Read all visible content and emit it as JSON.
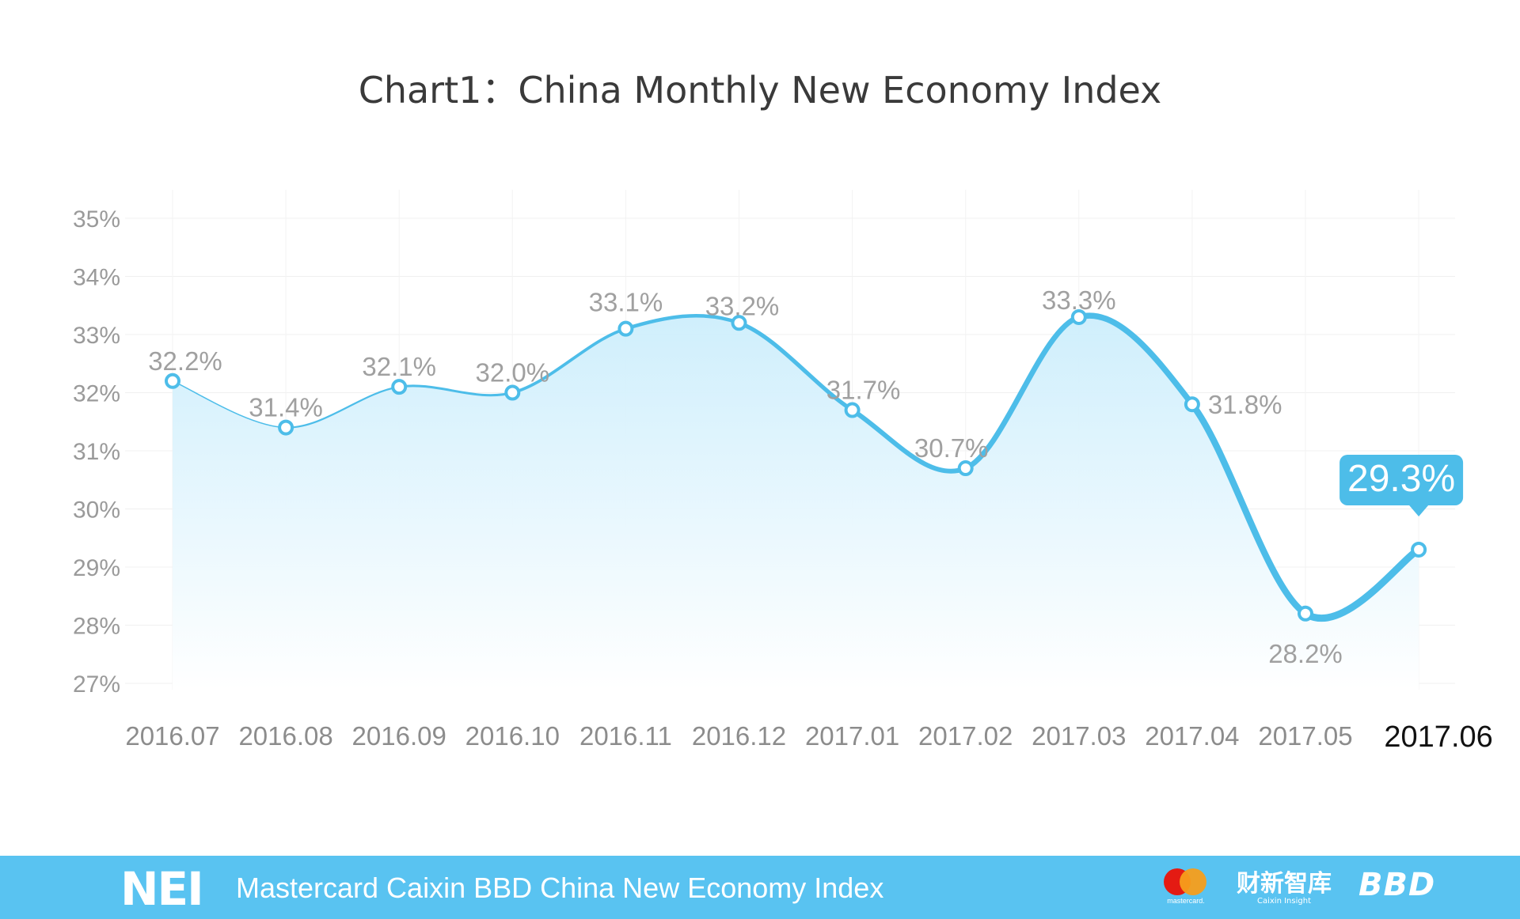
{
  "chart_data": {
    "type": "area",
    "title": "Chart1：China Monthly New Economy Index",
    "categories": [
      "2016.07",
      "2016.08",
      "2016.09",
      "2016.10",
      "2016.11",
      "2016.12",
      "2017.01",
      "2017.02",
      "2017.03",
      "2017.04",
      "2017.05",
      "2017.06"
    ],
    "values": [
      32.2,
      31.4,
      32.1,
      32.0,
      33.1,
      33.2,
      31.7,
      30.7,
      33.3,
      31.8,
      28.2,
      29.3
    ],
    "data_labels": [
      "32.2%",
      "31.4%",
      "32.1%",
      "32.0%",
      "33.1%",
      "33.2%",
      "31.7%",
      "30.7%",
      "33.3%",
      "31.8%",
      "28.2%",
      "29.3%"
    ],
    "y_ticks": [
      "35%",
      "34%",
      "33%",
      "32%",
      "31%",
      "30%",
      "29%",
      "28%",
      "27%"
    ],
    "ylim": [
      27,
      35
    ],
    "grid": true,
    "highlight_last": true,
    "colors": {
      "line": "#4dbde9",
      "fill": "#d6effb",
      "callout": "#4dbde9"
    }
  },
  "footer": {
    "logo": "NEI",
    "text": "Mastercard Caixin BBD China New Economy Index",
    "mastercard": "mastercard.",
    "caixin": "财新智库",
    "caixin_sub": "Caixin Insight",
    "bbd": "BBD",
    "background": "#59c3f1"
  }
}
